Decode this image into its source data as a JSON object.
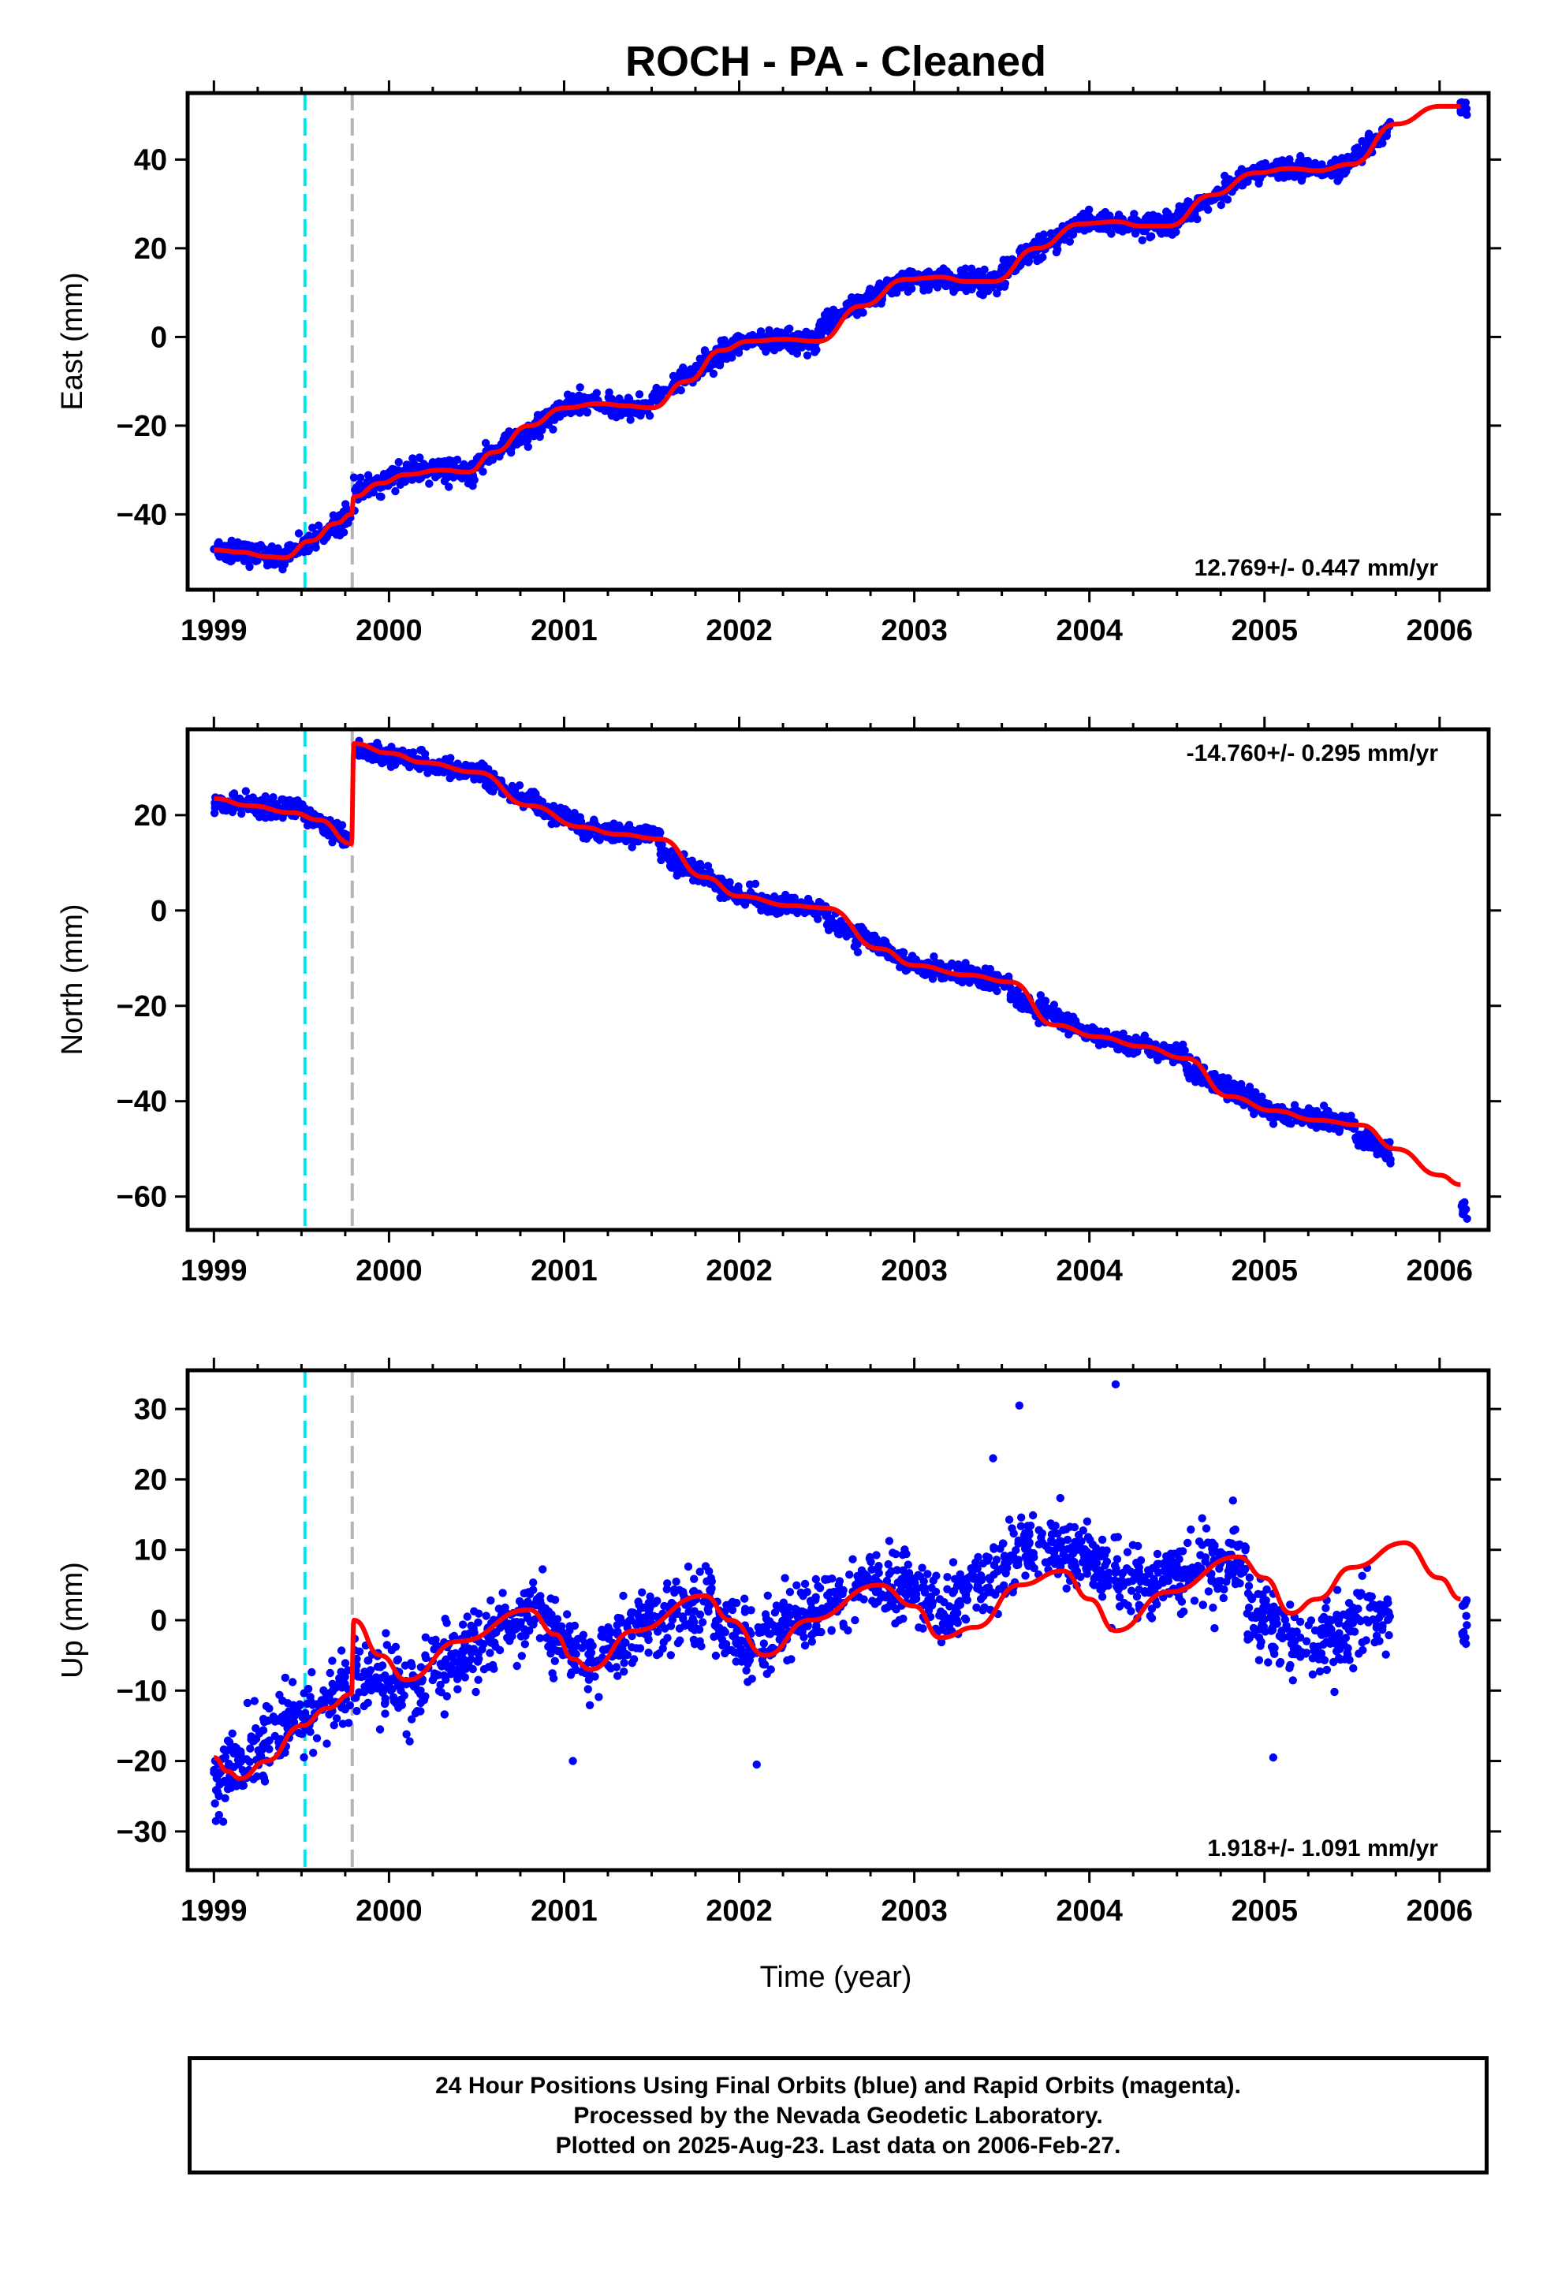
{
  "title": "ROCH  - PA - Cleaned",
  "xlabel": "Time (year)",
  "footer": {
    "line1": "24 Hour Positions Using Final Orbits (blue) and Rapid Orbits (magenta).",
    "line2": "Processed by the Nevada Geodetic Laboratory.",
    "line3": "Plotted on 2025-Aug-23. Last data on 2006-Feb-27."
  },
  "colors": {
    "points": "#0000ff",
    "model": "#ff0000",
    "event_cyan": "#00e5ee",
    "event_gray": "#b4b4b4"
  },
  "chart_data": [
    {
      "type": "scatter",
      "ylabel": "East (mm)",
      "rate": "12.769+/- 0.447 mm/yr",
      "rate_position": "bottom-right",
      "xlim": [
        1998.85,
        2006.28
      ],
      "ylim": [
        -57,
        55
      ],
      "xticks": [
        1999,
        2000,
        2001,
        2002,
        2003,
        2004,
        2005,
        2006
      ],
      "xtick_labels": [
        "1999",
        "2000",
        "2001",
        "2002",
        "2003",
        "2004",
        "2005",
        "2006"
      ],
      "yticks": [
        -40,
        -20,
        0,
        20,
        40
      ],
      "ytick_labels": [
        "−40",
        "−20",
        "0",
        "20",
        "40"
      ],
      "event_lines": [
        {
          "x": 1999.52,
          "color": "cyan"
        },
        {
          "x": 1999.79,
          "color": "gray"
        }
      ],
      "model": {
        "x": [
          1999.0,
          1999.15,
          1999.3,
          1999.4,
          1999.55,
          1999.7,
          1999.785,
          1999.8,
          1999.95,
          2000.1,
          2000.3,
          2000.45,
          2000.6,
          2000.8,
          2001.0,
          2001.2,
          2001.35,
          2001.5,
          2001.7,
          2001.9,
          2002.05,
          2002.25,
          2002.45,
          2002.7,
          2002.95,
          2003.15,
          2003.3,
          2003.45,
          2003.7,
          2003.95,
          2004.15,
          2004.3,
          2004.45,
          2004.7,
          2004.95,
          2005.15,
          2005.3,
          2005.5,
          2005.75,
          2006.0,
          2006.12
        ],
        "y": [
          -48,
          -48.5,
          -49.5,
          -49.8,
          -46,
          -42,
          -40,
          -36,
          -33,
          -31,
          -30,
          -30.5,
          -26,
          -20,
          -16,
          -15,
          -15.5,
          -16,
          -10,
          -3,
          -1,
          -0.5,
          -1,
          7,
          13,
          13.5,
          12.5,
          12.5,
          20,
          25.5,
          26,
          25,
          25,
          32,
          37,
          38,
          37.5,
          39,
          48,
          52,
          52
        ]
      },
      "points": {
        "segments": [
          [
            1999.0,
            1999.1,
            -47.5,
            -48.5
          ],
          [
            1999.1,
            1999.4,
            -48.5,
            -49.7
          ],
          [
            1999.4,
            1999.78,
            -49.5,
            -40.5
          ],
          [
            1999.8,
            2000.1,
            -35,
            -31
          ],
          [
            2000.1,
            2000.5,
            -30,
            -30.5
          ],
          [
            2000.5,
            2001.0,
            -29,
            -16
          ],
          [
            2001.0,
            2001.5,
            -15,
            -16
          ],
          [
            2001.5,
            2002.0,
            -14,
            -1
          ],
          [
            2002.0,
            2002.45,
            -1,
            -1
          ],
          [
            2002.45,
            2002.95,
            2,
            13
          ],
          [
            2002.95,
            2003.5,
            13,
            12.5
          ],
          [
            2003.5,
            2003.95,
            15,
            25.5
          ],
          [
            2003.95,
            2004.5,
            26,
            25
          ],
          [
            2004.5,
            2004.95,
            27,
            37
          ],
          [
            2004.95,
            2005.45,
            37.5,
            38
          ],
          [
            2005.45,
            2005.72,
            38,
            47
          ]
        ],
        "spread": 2.2,
        "count": 2000,
        "tail": {
          "x": [
            2006.12,
            2006.16
          ],
          "y": [
            50,
            53
          ]
        }
      }
    },
    {
      "type": "scatter",
      "ylabel": "North (mm)",
      "rate": "-14.760+/- 0.295 mm/yr",
      "rate_position": "top-right",
      "xlim": [
        1998.85,
        2006.28
      ],
      "ylim": [
        -67,
        38
      ],
      "xticks": [
        1999,
        2000,
        2001,
        2002,
        2003,
        2004,
        2005,
        2006
      ],
      "xtick_labels": [
        "1999",
        "2000",
        "2001",
        "2002",
        "2003",
        "2004",
        "2005",
        "2006"
      ],
      "yticks": [
        -60,
        -40,
        -20,
        0,
        20
      ],
      "ytick_labels": [
        "−60",
        "−40",
        "−20",
        "0",
        "20"
      ],
      "event_lines": [
        {
          "x": 1999.52,
          "color": "cyan"
        },
        {
          "x": 1999.79,
          "color": "gray"
        }
      ],
      "model": {
        "x": [
          1999.0,
          1999.2,
          1999.45,
          1999.6,
          1999.785,
          1999.8,
          2000.0,
          2000.2,
          2000.5,
          2000.8,
          2001.1,
          2001.3,
          2001.55,
          2001.8,
          2002.0,
          2002.3,
          2002.5,
          2002.8,
          2003.0,
          2003.3,
          2003.55,
          2003.8,
          2004.05,
          2004.3,
          2004.55,
          2004.8,
          2005.05,
          2005.3,
          2005.55,
          2005.75,
          2006.0,
          2006.12
        ],
        "y": [
          23.5,
          22,
          20.5,
          19,
          14,
          35,
          33,
          31,
          29,
          22,
          17.5,
          16,
          15,
          7,
          3,
          1,
          0.5,
          -8,
          -11.5,
          -13.5,
          -15,
          -24,
          -26.5,
          -28.5,
          -31,
          -39,
          -42,
          -44,
          -45,
          -50,
          -55.5,
          -57.5
        ]
      },
      "points": {
        "segments": [
          [
            1999.0,
            1999.5,
            23,
            21
          ],
          [
            1999.5,
            1999.78,
            20.5,
            14.5
          ],
          [
            1999.8,
            2000.2,
            34,
            31
          ],
          [
            2000.2,
            2000.55,
            30.5,
            29
          ],
          [
            2000.55,
            2001.1,
            27,
            18
          ],
          [
            2001.1,
            2001.55,
            17,
            15.5
          ],
          [
            2001.55,
            2002.0,
            12,
            3
          ],
          [
            2002.0,
            2002.5,
            2.5,
            0
          ],
          [
            2002.5,
            2003.0,
            -2,
            -11.5
          ],
          [
            2003.0,
            2003.55,
            -11.5,
            -15
          ],
          [
            2003.55,
            2004.05,
            -18,
            -26.5
          ],
          [
            2004.05,
            2004.55,
            -27,
            -30
          ],
          [
            2004.55,
            2005.05,
            -33,
            -42
          ],
          [
            2005.05,
            2005.5,
            -42.5,
            -44.5
          ],
          [
            2005.5,
            2005.72,
            -46,
            -51
          ]
        ],
        "spread": 1.8,
        "count": 2000,
        "tail": {
          "x": [
            2006.12,
            2006.16
          ],
          "y": [
            -65,
            -61
          ]
        }
      }
    },
    {
      "type": "scatter",
      "ylabel": "Up (mm)",
      "rate": "1.918+/- 1.091 mm/yr",
      "rate_position": "bottom-right",
      "xlim": [
        1998.85,
        2006.28
      ],
      "ylim": [
        -35.5,
        35.5
      ],
      "xticks": [
        1999,
        2000,
        2001,
        2002,
        2003,
        2004,
        2005,
        2006
      ],
      "xtick_labels": [
        "1999",
        "2000",
        "2001",
        "2002",
        "2003",
        "2004",
        "2005",
        "2006"
      ],
      "yticks": [
        -30,
        -20,
        -10,
        0,
        10,
        20,
        30
      ],
      "ytick_labels": [
        "−30",
        "−20",
        "−10",
        "0",
        "10",
        "20",
        "30"
      ],
      "event_lines": [
        {
          "x": 1999.52,
          "color": "cyan"
        },
        {
          "x": 1999.79,
          "color": "gray"
        }
      ],
      "model": {
        "x": [
          1999.0,
          1999.08,
          1999.15,
          1999.3,
          1999.5,
          1999.65,
          1999.785,
          1999.8,
          1999.95,
          2000.1,
          2000.4,
          2000.8,
          2000.95,
          2001.05,
          2001.15,
          2001.4,
          2001.8,
          2001.95,
          2002.15,
          2002.4,
          2002.8,
          2003.0,
          2003.15,
          2003.35,
          2003.6,
          2003.85,
          2004.0,
          2004.15,
          2004.45,
          2004.85,
          2005.0,
          2005.15,
          2005.3,
          2005.5,
          2005.8,
          2006.0,
          2006.12
        ],
        "y": [
          -19.5,
          -21.5,
          -22.5,
          -20,
          -15,
          -12.5,
          -10.5,
          0,
          -5,
          -8.5,
          -3,
          1.5,
          -2,
          -5.5,
          -7,
          -1.5,
          3.5,
          0,
          -5,
          0,
          5,
          2,
          -2.5,
          -1,
          5,
          7,
          3,
          -1.5,
          4,
          9,
          6,
          1,
          3,
          7.5,
          11,
          6,
          3
        ]
      },
      "points": {
        "segments": [
          [
            1999.0,
            1999.4,
            -23,
            -16
          ],
          [
            1999.4,
            1999.78,
            -15,
            -10
          ],
          [
            1999.8,
            2000.1,
            -7,
            -10
          ],
          [
            2000.1,
            2000.5,
            -10,
            -4
          ],
          [
            2000.5,
            2000.9,
            -3,
            2
          ],
          [
            2000.9,
            2001.2,
            -2,
            -7
          ],
          [
            2001.2,
            2001.85,
            -4,
            3
          ],
          [
            2001.85,
            2002.15,
            1,
            -5
          ],
          [
            2002.15,
            2002.8,
            -2,
            6
          ],
          [
            2002.8,
            2003.2,
            6,
            1
          ],
          [
            2003.2,
            2003.6,
            2,
            9
          ],
          [
            2003.6,
            2004.0,
            11,
            9
          ],
          [
            2004.0,
            2004.3,
            8,
            4
          ],
          [
            2004.3,
            2004.9,
            5,
            8
          ],
          [
            2004.9,
            2005.3,
            2,
            -5
          ],
          [
            2005.3,
            2005.72,
            -3,
            2
          ]
        ],
        "spread": 4.5,
        "count": 1900,
        "tail": {
          "x": [
            2006.12,
            2006.16
          ],
          "y": [
            -4,
            3
          ]
        },
        "outliers": {
          "x": [
            2003.6,
            2004.15,
            2003.45,
            2001.05,
            2002.1,
            2004.82,
            2005.05
          ],
          "y": [
            30.5,
            33.5,
            23,
            -20,
            -20.5,
            17,
            -19.5
          ]
        }
      }
    }
  ]
}
